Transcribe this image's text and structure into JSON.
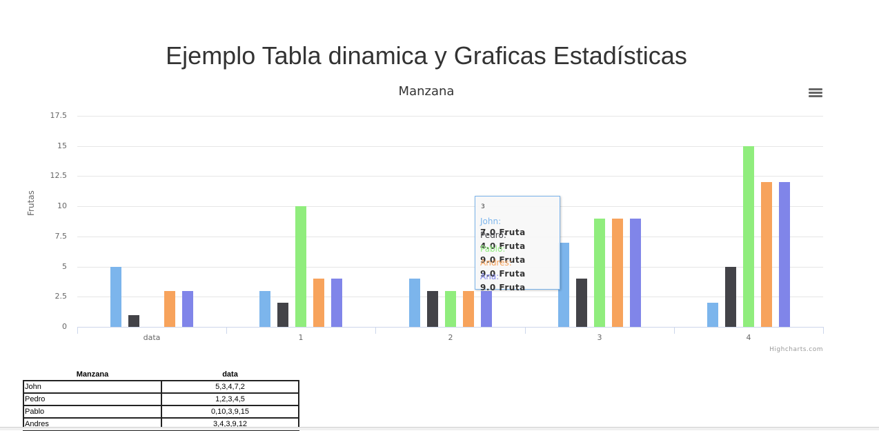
{
  "page": {
    "title": "Ejemplo Tabla dinamica y Graficas Estadísticas"
  },
  "chart_data": {
    "type": "bar",
    "title": "Manzana",
    "xlabel": "",
    "ylabel": "Frutas",
    "ylim": [
      0,
      17.5
    ],
    "yticks": [
      "0",
      "2.5",
      "5",
      "7.5",
      "10",
      "12.5",
      "15",
      "17.5"
    ],
    "categories": [
      "data",
      "1",
      "2",
      "3",
      "4"
    ],
    "series": [
      {
        "name": "John",
        "color": "#7cb5ec",
        "values": [
          5,
          3,
          4,
          7,
          2
        ]
      },
      {
        "name": "Pedro",
        "color": "#434348",
        "values": [
          1,
          2,
          3,
          4,
          5
        ]
      },
      {
        "name": "Pablo",
        "color": "#90ed7d",
        "values": [
          0,
          10,
          3,
          9,
          15
        ]
      },
      {
        "name": "Andres",
        "color": "#f7a35c",
        "values": [
          3,
          4,
          3,
          9,
          12
        ]
      },
      {
        "name": "Ana",
        "color": "#8085e9",
        "values": [
          3,
          4,
          3,
          9,
          12
        ]
      }
    ],
    "grid": true,
    "credits": "Highcharts.com",
    "tooltip": {
      "header": "3",
      "rows": [
        {
          "name": "John:",
          "value": "7.0 Fruta",
          "color": "#7cb5ec"
        },
        {
          "name": "Pedro:",
          "value": "4.0 Fruta",
          "color": "#434348"
        },
        {
          "name": "Pablo:",
          "value": "9.0 Fruta",
          "color": "#90ed7d"
        },
        {
          "name": "Andres:",
          "value": "9.0 Fruta",
          "color": "#f7a35c"
        },
        {
          "name": "Ana:",
          "value": "9.0 Fruta",
          "color": "#8085e9"
        }
      ]
    }
  },
  "table": {
    "headers": [
      "Manzana",
      "data"
    ],
    "rows": [
      [
        "John",
        "5,3,4,7,2"
      ],
      [
        "Pedro",
        "1,2,3,4,5"
      ],
      [
        "Pablo",
        "0,10,3,9,15"
      ],
      [
        "Andres",
        "3,4,3,9,12"
      ]
    ]
  }
}
